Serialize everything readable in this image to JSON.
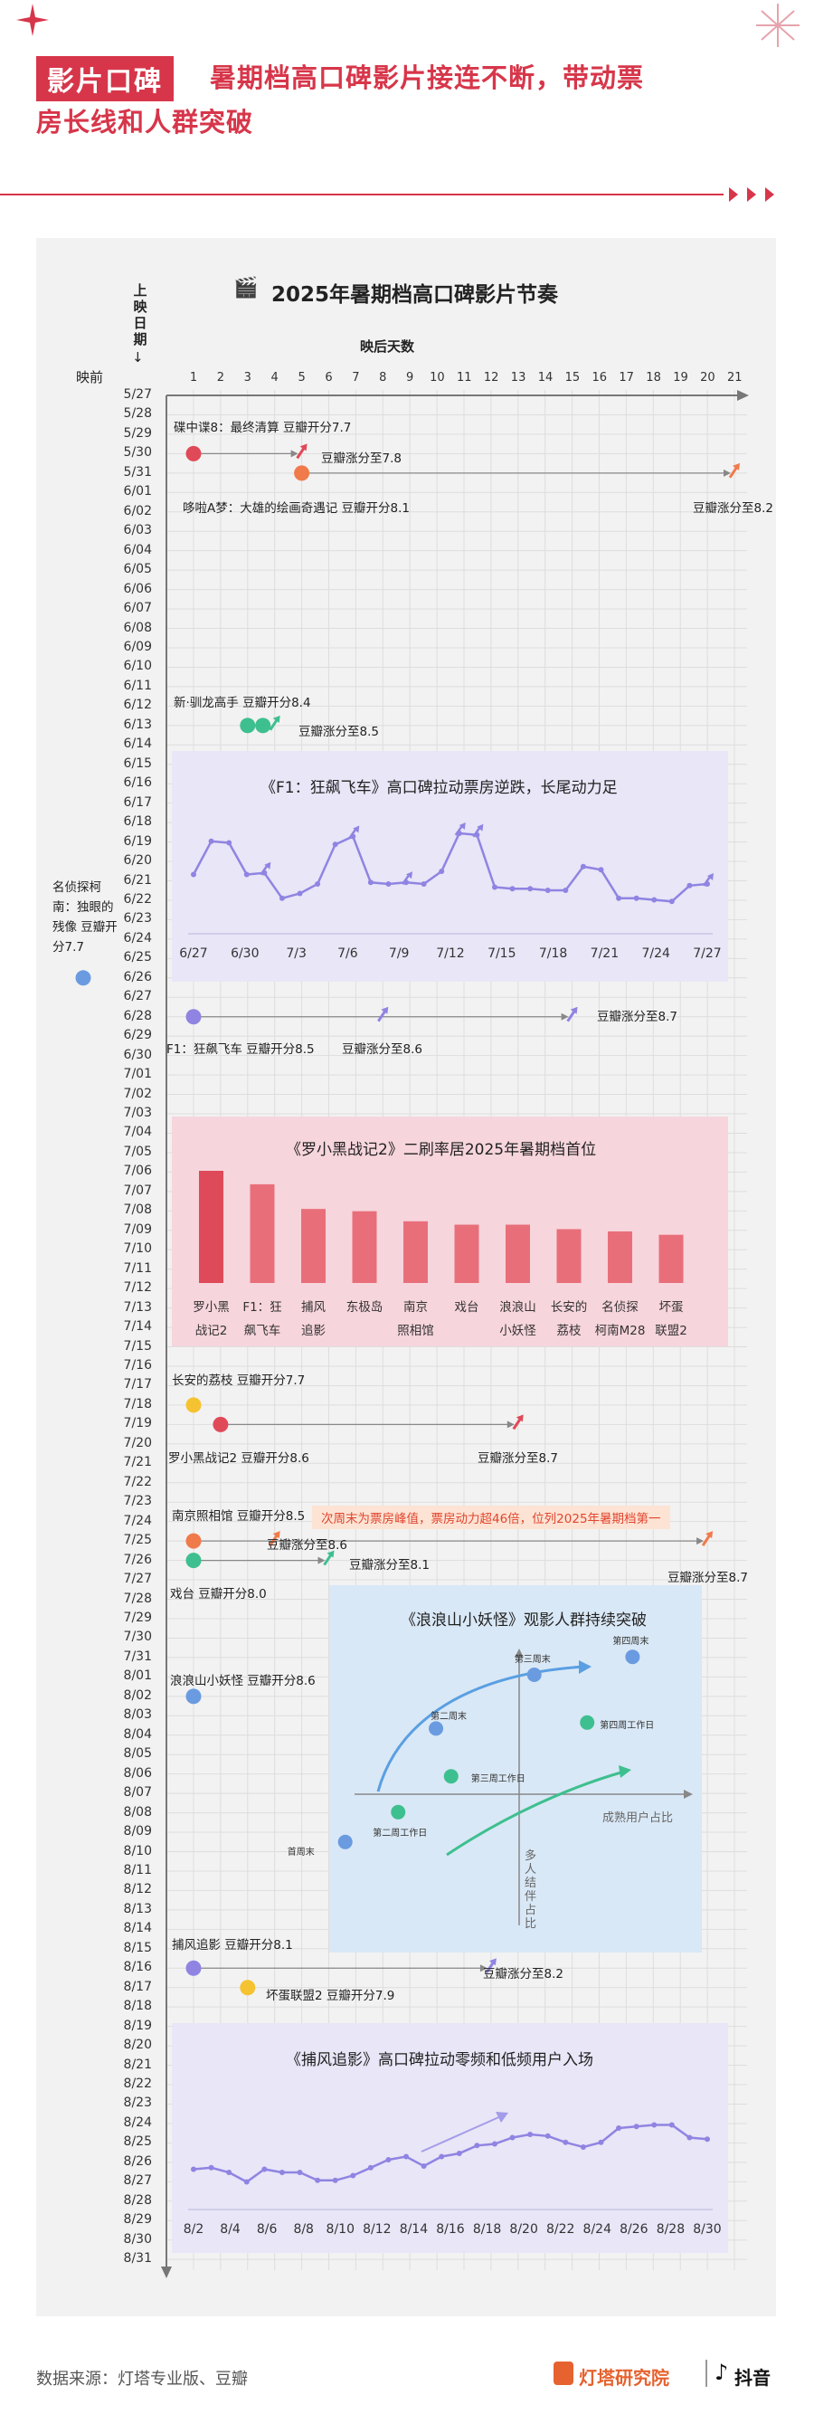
{
  "header": {
    "tag": "影片口碑",
    "title_line1": "暑期档高口碑影片接连不断，带动票",
    "title_line2": "房长线和人群突破"
  },
  "chart": {
    "title": "2025年暑期档高口碑影片节奏",
    "y_axis_label": "上映日期",
    "x_axis_label": "映后天数",
    "pre_label": "映前",
    "day_ticks": [
      "1",
      "2",
      "3",
      "4",
      "5",
      "6",
      "7",
      "8",
      "9",
      "10",
      "11",
      "12",
      "13",
      "14",
      "15",
      "16",
      "17",
      "18",
      "19",
      "20",
      "21"
    ],
    "dates": [
      "5/27",
      "5/28",
      "5/29",
      "5/30",
      "5/31",
      "6/01",
      "6/02",
      "6/03",
      "6/04",
      "6/05",
      "6/06",
      "6/07",
      "6/08",
      "6/09",
      "6/10",
      "6/11",
      "6/12",
      "6/13",
      "6/14",
      "6/15",
      "6/16",
      "6/17",
      "6/18",
      "6/19",
      "6/20",
      "6/21",
      "6/22",
      "6/23",
      "6/24",
      "6/25",
      "6/26",
      "6/27",
      "6/28",
      "6/29",
      "6/30",
      "7/01",
      "7/02",
      "7/03",
      "7/04",
      "7/05",
      "7/06",
      "7/07",
      "7/08",
      "7/09",
      "7/10",
      "7/11",
      "7/12",
      "7/13",
      "7/14",
      "7/15",
      "7/16",
      "7/17",
      "7/18",
      "7/19",
      "7/20",
      "7/21",
      "7/22",
      "7/23",
      "7/24",
      "7/25",
      "7/26",
      "7/27",
      "7/28",
      "7/29",
      "7/30",
      "7/31",
      "8/01",
      "8/02",
      "8/03",
      "8/04",
      "8/05",
      "8/06",
      "8/07",
      "8/08",
      "8/09",
      "8/10",
      "8/11",
      "8/12",
      "8/13",
      "8/14",
      "8/15",
      "8/16",
      "8/17",
      "8/18",
      "8/19",
      "8/20",
      "8/21",
      "8/22",
      "8/23",
      "8/24",
      "8/25",
      "8/26",
      "8/27",
      "8/28",
      "8/29",
      "8/30",
      "8/31"
    ]
  },
  "colors": {
    "accent": "#d7364a",
    "purple": "#8f84e2",
    "orange": "#f07a4a",
    "red": "#e04a58",
    "green": "#3ebf8f",
    "yellow": "#f5c332",
    "blue": "#6a9be0",
    "panel_purple": "#e8e6f7",
    "panel_pink": "#f7d5dc",
    "panel_blue": "#d9e8f6"
  },
  "chart_data": [
    {
      "type": "scatter",
      "title": "2025年暑期档高口碑影片节奏",
      "xlabel": "映后天数",
      "ylabel": "上映日期",
      "films": [
        {
          "name": "碟中谍8",
          "release": "5/30",
          "label": "碟中谍8：最终清算 豆瓣开分7.7",
          "open_day": 1,
          "rise_day": 5,
          "rise_label": "豆瓣涨分至7.8",
          "color": "#e04a58"
        },
        {
          "name": "哆啦A梦",
          "release": "5/31",
          "label": "哆啦A梦：大雄的绘画奇遇记 豆瓣开分8.1",
          "open_day": 5,
          "rise_day": 21,
          "rise_label": "豆瓣涨分至8.2",
          "color": "#f07a4a"
        },
        {
          "name": "新·驯龙高手",
          "release": "6/13",
          "label": "新·驯龙高手 豆瓣开分8.4",
          "open_day": 3,
          "rise_day": 4,
          "rise_label": "豆瓣涨分至8.5",
          "color": "#3ebf8f"
        },
        {
          "name": "名侦探柯南：独眼的残像",
          "release": "6/26",
          "label": "名侦探柯南：独眼的残像 豆瓣开分7.7",
          "open_day": 0,
          "color": "#6a9be0"
        },
        {
          "name": "F1：狂飙飞车",
          "release": "6/28",
          "label": "F1：狂飙飞车 豆瓣开分8.5",
          "open_day": 1,
          "rise_day": 8,
          "rise2_day": 15,
          "rise_label": "豆瓣涨分至8.6",
          "rise2_label": "豆瓣涨分至8.7",
          "color": "#8f84e2"
        },
        {
          "name": "长安的荔枝",
          "release": "7/18",
          "label": "长安的荔枝 豆瓣开分7.7",
          "open_day": 1,
          "color": "#f5c332"
        },
        {
          "name": "罗小黑战记2",
          "release": "7/19",
          "label": "罗小黑战记2 豆瓣开分8.6",
          "open_day": 2,
          "rise_day": 13,
          "rise_label": "豆瓣涨分至8.7",
          "color": "#e04a58"
        },
        {
          "name": "南京照相馆",
          "release": "7/25",
          "label": "南京照相馆 豆瓣开分8.5",
          "open_day": 1,
          "rise_day": 4,
          "rise2_day": 20,
          "rise_label": "豆瓣涨分至8.6",
          "rise2_label": "豆瓣涨分至8.7",
          "color": "#f07a4a"
        },
        {
          "name": "戏台",
          "release": "7/26",
          "label": "戏台 豆瓣开分8.0",
          "open_day": 1,
          "rise_day": 6,
          "rise_label": "豆瓣涨分至8.1",
          "color": "#3ebf8f"
        },
        {
          "name": "浪浪山小妖怪",
          "release": "8/02",
          "label": "浪浪山小妖怪 豆瓣开分8.6",
          "open_day": 1,
          "color": "#6a9be0"
        },
        {
          "name": "捕风追影",
          "release": "8/16",
          "label": "捕风追影 豆瓣开分8.1",
          "open_day": 1,
          "rise_day": 12,
          "rise_label": "豆瓣涨分至8.2",
          "color": "#8f84e2"
        },
        {
          "name": "坏蛋联盟2",
          "release": "8/17",
          "label": "坏蛋联盟2 豆瓣开分7.9",
          "open_day": 3,
          "color": "#f5c332"
        }
      ],
      "note": "次周末为票房峰值，票房动力超46倍，位列2025年暑期档第一"
    },
    {
      "type": "line",
      "title": "《F1：狂飙飞车》高口碑拉动票房逆跌，长尾动力足",
      "x_ticks": [
        "6/27",
        "6/30",
        "7/3",
        "7/6",
        "7/9",
        "7/12",
        "7/15",
        "7/18",
        "7/21",
        "7/24",
        "7/27"
      ],
      "values": [
        42,
        63,
        62,
        42,
        43,
        27,
        30,
        36,
        61,
        66,
        37,
        36,
        37,
        36,
        44,
        68,
        67,
        34,
        33,
        33,
        32,
        32,
        47,
        45,
        27,
        27,
        26,
        25,
        35,
        36
      ],
      "ylim": [
        0,
        80
      ]
    },
    {
      "type": "bar",
      "title": "《罗小黑战记2》二刷率居2025年暑期档首位",
      "categories": [
        "罗小黑战记2",
        "F1：狂飙飞车",
        "捕风追影",
        "东极岛",
        "南京照相馆",
        "戏台",
        "浪浪山小妖怪",
        "长安的荔枝",
        "名侦探柯南M28",
        "坏蛋联盟2"
      ],
      "values": [
        100,
        88,
        66,
        64,
        55,
        52,
        52,
        48,
        46,
        43
      ],
      "ylim": [
        0,
        110
      ]
    },
    {
      "type": "scatter",
      "title": "《浪浪山小妖怪》观影人群持续突破",
      "xlabel": "成熟用户占比",
      "ylabel": "多人结伴占比",
      "points": [
        {
          "label": "首周末",
          "x": -2.3,
          "y": -0.8,
          "color": "#6a9be0"
        },
        {
          "label": "第二周末",
          "x": -1.1,
          "y": 1.1,
          "color": "#6a9be0"
        },
        {
          "label": "第三周末",
          "x": 0.2,
          "y": 2.0,
          "color": "#6a9be0"
        },
        {
          "label": "第四周末",
          "x": 1.5,
          "y": 2.3,
          "color": "#6a9be0"
        },
        {
          "label": "第二周工作日",
          "x": -1.6,
          "y": -0.3,
          "color": "#3ebf8f"
        },
        {
          "label": "第三周工作日",
          "x": -0.9,
          "y": 0.3,
          "color": "#3ebf8f"
        },
        {
          "label": "第四周工作日",
          "x": 0.9,
          "y": 1.2,
          "color": "#3ebf8f"
        }
      ]
    },
    {
      "type": "line",
      "title": "《捕风追影》高口碑拉动零频和低频用户入场",
      "x_ticks": [
        "8/2",
        "8/4",
        "8/6",
        "8/8",
        "8/10",
        "8/12",
        "8/14",
        "8/16",
        "8/18",
        "8/20",
        "8/22",
        "8/24",
        "8/26",
        "8/28",
        "8/30"
      ],
      "values": [
        30,
        31,
        28,
        22,
        30,
        28,
        28,
        23,
        23,
        26,
        31,
        36,
        38,
        32,
        38,
        40,
        45,
        46,
        50,
        52,
        51,
        47,
        44,
        47,
        56,
        57,
        58,
        58,
        50,
        49
      ],
      "ylim": [
        0,
        80
      ]
    }
  ],
  "footer": {
    "source": "数据来源：灯塔专业版、豆瓣",
    "brand1": "灯塔研究院",
    "brand2": "抖音"
  }
}
